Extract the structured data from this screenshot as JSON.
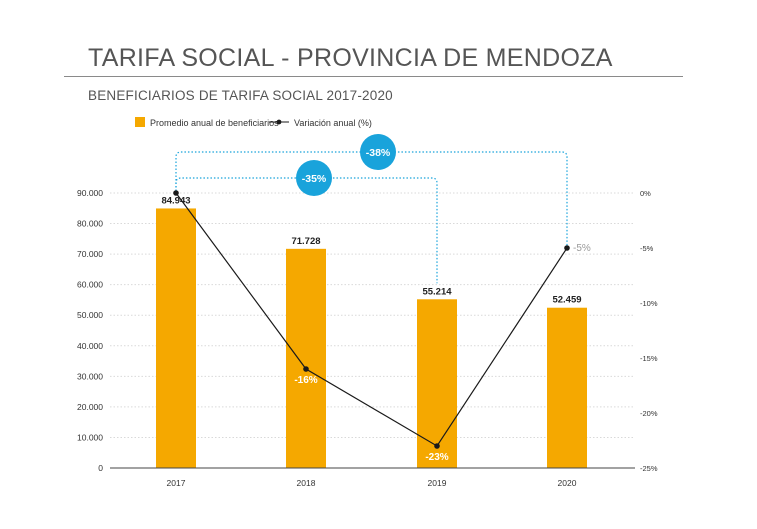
{
  "header": {
    "title": "TARIFA SOCIAL - PROVINCIA DE MENDOZA",
    "subtitle": "BENEFICIARIOS DE TARIFA SOCIAL 2017-2020"
  },
  "colors": {
    "bar": "#F5A800",
    "line": "#1a1a1a",
    "bubble": "#19A3DB",
    "connector": "#19A3DB",
    "grid": "#d9d9d9"
  },
  "chart_data": {
    "type": "bar",
    "categories": [
      "2017",
      "2018",
      "2019",
      "2020"
    ],
    "legend_position": "top-left",
    "grid": true,
    "series": [
      {
        "name": "Promedio anual de beneficiarios",
        "type": "bar",
        "axis": "left",
        "values": [
          84943,
          71728,
          55214,
          52459
        ],
        "labels": [
          "84.943",
          "71.728",
          "55.214",
          "52.459"
        ]
      },
      {
        "name": "Variación anual (%)",
        "type": "line",
        "axis": "right",
        "values": [
          0,
          -16,
          -23,
          -5
        ],
        "labels": [
          "",
          "-16%",
          "-23%",
          "-5%"
        ]
      }
    ],
    "y_left": {
      "lim": [
        0,
        90000
      ],
      "ticks": [
        0,
        10000,
        20000,
        30000,
        40000,
        50000,
        60000,
        70000,
        80000,
        90000
      ],
      "tick_labels": [
        "0",
        "10.000",
        "20.000",
        "30.000",
        "40.000",
        "50.000",
        "60.000",
        "70.000",
        "80.000",
        "90.000"
      ]
    },
    "y_right": {
      "lim": [
        -25,
        0
      ],
      "ticks": [
        0,
        -5,
        -10,
        -15,
        -20,
        -25
      ],
      "tick_labels": [
        "0%",
        "-5%",
        "-10%",
        "-15%",
        "-20%",
        "-25%"
      ]
    },
    "annotations": [
      {
        "from": "2017",
        "to": "2020",
        "label": "-38%"
      },
      {
        "from": "2017",
        "to": "2019",
        "label": "-35%"
      }
    ]
  }
}
